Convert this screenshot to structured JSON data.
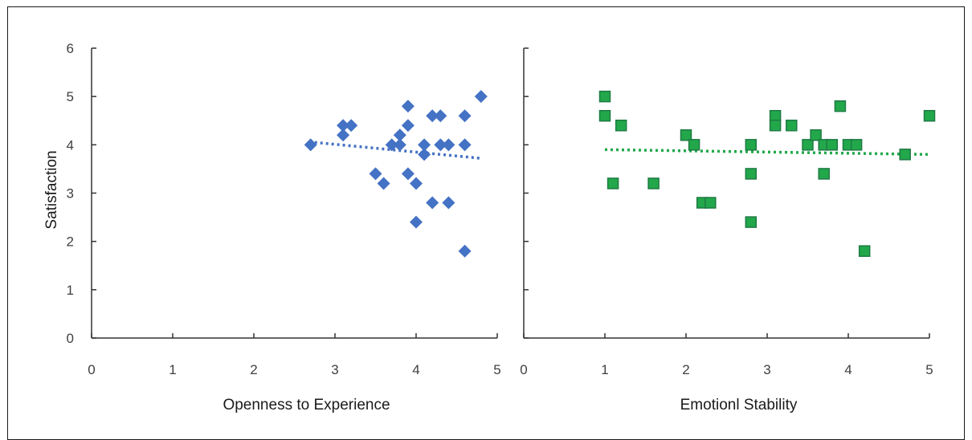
{
  "chart_data": [
    {
      "type": "scatter",
      "title": "",
      "xlabel": "Openness to Experience",
      "ylabel": "Satisfaction",
      "xlim": [
        0,
        5
      ],
      "ylim": [
        0,
        6
      ],
      "x_ticks": [
        0,
        1,
        2,
        3,
        4,
        5
      ],
      "y_ticks": [
        0,
        1,
        2,
        3,
        4,
        5,
        6
      ],
      "marker": "diamond",
      "color": "#4472C4",
      "trendline": {
        "style": "dotted",
        "from": [
          2.75,
          4.05
        ],
        "to": [
          4.8,
          3.72
        ]
      },
      "points": [
        [
          2.7,
          4.0
        ],
        [
          3.1,
          4.4
        ],
        [
          3.1,
          4.2
        ],
        [
          3.2,
          4.4
        ],
        [
          3.5,
          3.4
        ],
        [
          3.6,
          3.2
        ],
        [
          3.7,
          4.0
        ],
        [
          3.8,
          4.2
        ],
        [
          3.8,
          4.0
        ],
        [
          3.9,
          4.8
        ],
        [
          3.9,
          4.4
        ],
        [
          3.9,
          3.4
        ],
        [
          4.0,
          3.2
        ],
        [
          4.0,
          2.4
        ],
        [
          4.1,
          4.0
        ],
        [
          4.1,
          3.8
        ],
        [
          4.2,
          4.6
        ],
        [
          4.2,
          2.8
        ],
        [
          4.3,
          4.6
        ],
        [
          4.3,
          4.0
        ],
        [
          4.4,
          4.0
        ],
        [
          4.4,
          2.8
        ],
        [
          4.6,
          4.6
        ],
        [
          4.6,
          4.0
        ],
        [
          4.6,
          1.8
        ],
        [
          4.8,
          5.0
        ]
      ]
    },
    {
      "type": "scatter",
      "title": "",
      "xlabel": "Emotionl Stability",
      "ylabel": "",
      "xlim": [
        0,
        5
      ],
      "ylim": [
        0,
        6
      ],
      "x_ticks": [
        0,
        1,
        2,
        3,
        4,
        5
      ],
      "y_ticks": [
        0,
        1,
        2,
        3,
        4,
        5,
        6
      ],
      "marker": "square",
      "color": "#22A84A",
      "edge_color": "#1f7a44",
      "trendline": {
        "style": "dotted",
        "from": [
          1.0,
          3.9
        ],
        "to": [
          5.0,
          3.8
        ]
      },
      "points": [
        [
          1.0,
          5.0
        ],
        [
          1.0,
          4.6
        ],
        [
          1.1,
          3.2
        ],
        [
          1.2,
          4.4
        ],
        [
          1.6,
          3.2
        ],
        [
          2.0,
          4.2
        ],
        [
          2.1,
          4.0
        ],
        [
          2.2,
          2.8
        ],
        [
          2.3,
          2.8
        ],
        [
          2.8,
          4.0
        ],
        [
          2.8,
          3.4
        ],
        [
          2.8,
          2.4
        ],
        [
          3.1,
          4.6
        ],
        [
          3.1,
          4.4
        ],
        [
          3.3,
          4.4
        ],
        [
          3.5,
          4.0
        ],
        [
          3.6,
          4.2
        ],
        [
          3.7,
          4.0
        ],
        [
          3.7,
          3.4
        ],
        [
          3.8,
          4.0
        ],
        [
          3.9,
          4.8
        ],
        [
          4.0,
          4.0
        ],
        [
          4.1,
          4.0
        ],
        [
          4.2,
          1.8
        ],
        [
          4.7,
          3.8
        ],
        [
          5.0,
          4.6
        ]
      ]
    }
  ]
}
